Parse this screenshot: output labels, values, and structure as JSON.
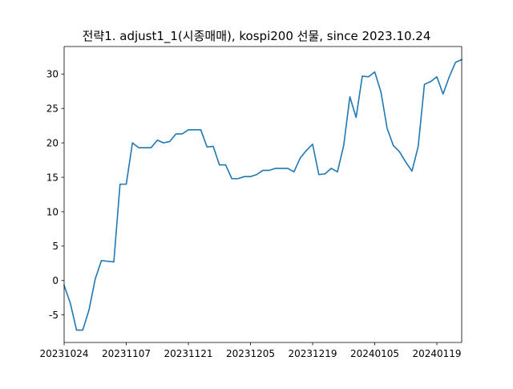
{
  "chart_data": {
    "type": "line",
    "title": "전략1. adjust1_1(시종매매), kospi200 선물, since 2023.10.24",
    "xlabel": "",
    "ylabel": "",
    "x_tick_labels": [
      "20231024",
      "20231107",
      "20231121",
      "20231205",
      "20231219",
      "20240105",
      "20240119"
    ],
    "x_tick_index": [
      0,
      10,
      20,
      30,
      40,
      50,
      60
    ],
    "y_ticks": [
      -5,
      0,
      5,
      10,
      15,
      20,
      25,
      30
    ],
    "ylim": [
      -9,
      34
    ],
    "xlim": [
      0,
      64
    ],
    "grid": false,
    "line_color": "#1f77b4",
    "series": [
      {
        "values": [
          -0.7,
          -3.3,
          -7.2,
          -7.2,
          -4.3,
          0.2,
          2.9,
          2.8,
          2.7,
          14.0,
          14.0,
          20.0,
          19.3,
          19.3,
          19.3,
          20.4,
          20.0,
          20.2,
          21.3,
          21.3,
          21.9,
          21.9,
          21.9,
          19.4,
          19.5,
          16.8,
          16.8,
          14.8,
          14.8,
          15.1,
          15.1,
          15.4,
          16.0,
          16.0,
          16.3,
          16.3,
          16.3,
          15.8,
          17.8,
          18.9,
          19.8,
          15.4,
          15.5,
          16.3,
          15.8,
          19.6,
          26.7,
          23.7,
          29.7,
          29.6,
          30.3,
          27.4,
          22.1,
          19.6,
          18.7,
          17.2,
          15.9,
          19.5,
          28.5,
          28.9,
          29.6,
          27.1,
          29.6,
          31.7,
          32.1
        ]
      }
    ]
  }
}
